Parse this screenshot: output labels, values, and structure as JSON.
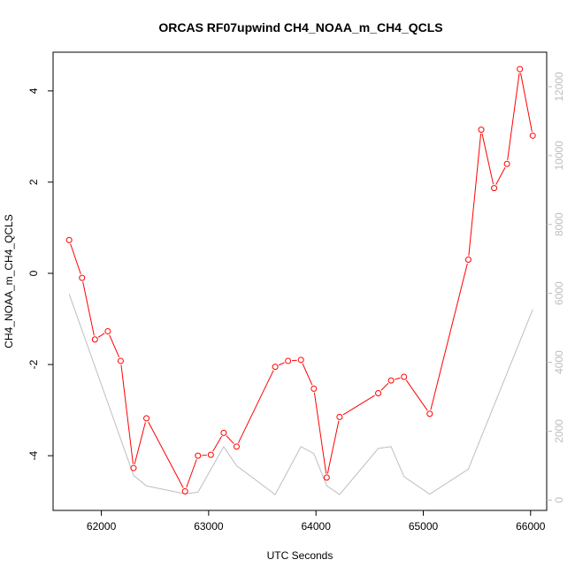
{
  "chart_data": {
    "type": "line",
    "title": "ORCAS RF07upwind CH4_NOAA_m_CH4_QCLS",
    "xlabel": "UTC Seconds",
    "ylabel": "CH4_NOAA_m_CH4_QCLS",
    "xlim": [
      61550,
      66150
    ],
    "ylim": [
      -5.2,
      4.85
    ],
    "y2lim": [
      -300,
      13000
    ],
    "x_ticks": [
      62000,
      63000,
      64000,
      65000,
      66000
    ],
    "y_ticks": [
      -4,
      -2,
      0,
      2,
      4
    ],
    "y2_ticks": [
      0,
      2000,
      4000,
      6000,
      8000,
      10000,
      12000
    ],
    "grid": false,
    "colors": {
      "primary": "#ff0000",
      "secondary": "#bebebe",
      "axis": "#000000"
    },
    "series": [
      {
        "axis": "left",
        "marker": "open-circle",
        "color": "#ff0000",
        "x": [
          61700,
          61820,
          61940,
          62060,
          62180,
          62300,
          62420,
          62780,
          62900,
          63020,
          63140,
          63260,
          63620,
          63740,
          63860,
          63980,
          64100,
          64220,
          64580,
          64700,
          64820,
          65060,
          65420,
          65540,
          65660,
          65780,
          65900,
          66020
        ],
        "values": [
          0.73,
          -0.1,
          -1.45,
          -1.27,
          -1.92,
          -4.27,
          -3.18,
          -4.78,
          -4.0,
          -3.98,
          -3.5,
          -3.8,
          -2.05,
          -1.92,
          -1.9,
          -2.53,
          -4.48,
          -3.15,
          -2.63,
          -2.35,
          -2.27,
          -3.08,
          0.3,
          3.15,
          1.87,
          2.4,
          4.48,
          3.02
        ]
      },
      {
        "axis": "right",
        "marker": "none",
        "color": "#bebebe",
        "x": [
          61700,
          62300,
          62420,
          62780,
          62900,
          63140,
          63260,
          63620,
          63860,
          63980,
          64100,
          64220,
          64580,
          64700,
          64820,
          65060,
          65420,
          66020
        ],
        "values": [
          5980,
          720,
          410,
          180,
          230,
          1550,
          1000,
          160,
          1550,
          1350,
          420,
          160,
          1500,
          1550,
          680,
          170,
          900,
          5530
        ]
      }
    ]
  }
}
